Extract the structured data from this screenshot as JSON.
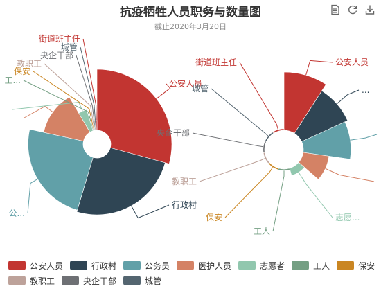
{
  "title": "抗疫牺牲人员职务与数量图",
  "subtitle": "截止2020年3月20日",
  "toolbox": [
    {
      "name": "data-view-icon"
    },
    {
      "name": "restore-icon"
    },
    {
      "name": "save-image-icon"
    }
  ],
  "colors": [
    "#c23531",
    "#2f4554",
    "#61a0a8",
    "#d48265",
    "#91c7ae",
    "#749f83",
    "#ca8622",
    "#bda29a",
    "#6e7074",
    "#546570"
  ],
  "chart_data": [
    {
      "type": "pie",
      "rose": "radius",
      "categories": [
        "公安人员",
        "行政村",
        "公务员",
        "医护人员",
        "志愿者",
        "工人",
        "保安",
        "教职工",
        "央企干部",
        "城管",
        "街道班主任"
      ],
      "values": [
        38,
        33,
        31,
        17,
        5,
        1,
        1,
        1,
        1,
        1,
        1
      ],
      "labels": [
        "公安人员",
        "行政村",
        "公...",
        "",
        "",
        "工...",
        "保安",
        "教职工",
        "央企干部",
        "城管",
        "街道班主任"
      ]
    },
    {
      "type": "pie",
      "rose": "area",
      "categories": [
        "公安人员",
        "行政村",
        "公务员",
        "医护人员",
        "志愿者",
        "工人",
        "保安",
        "教职工",
        "央企干部",
        "城管",
        "街道班主任"
      ],
      "values": [
        38,
        33,
        31,
        17,
        5,
        1,
        1,
        1,
        1,
        1,
        1
      ],
      "labels": [
        "公安人员",
        "...",
        "",
        "",
        "志愿...",
        "工人",
        "保安",
        "教职工",
        "央企干部",
        "城管",
        "街道班主任"
      ]
    }
  ],
  "legend": [
    "公安人员",
    "行政村",
    "公务员",
    "医护人员",
    "志愿者",
    "工人",
    "保安",
    "教职工",
    "央企干部",
    "城管"
  ]
}
